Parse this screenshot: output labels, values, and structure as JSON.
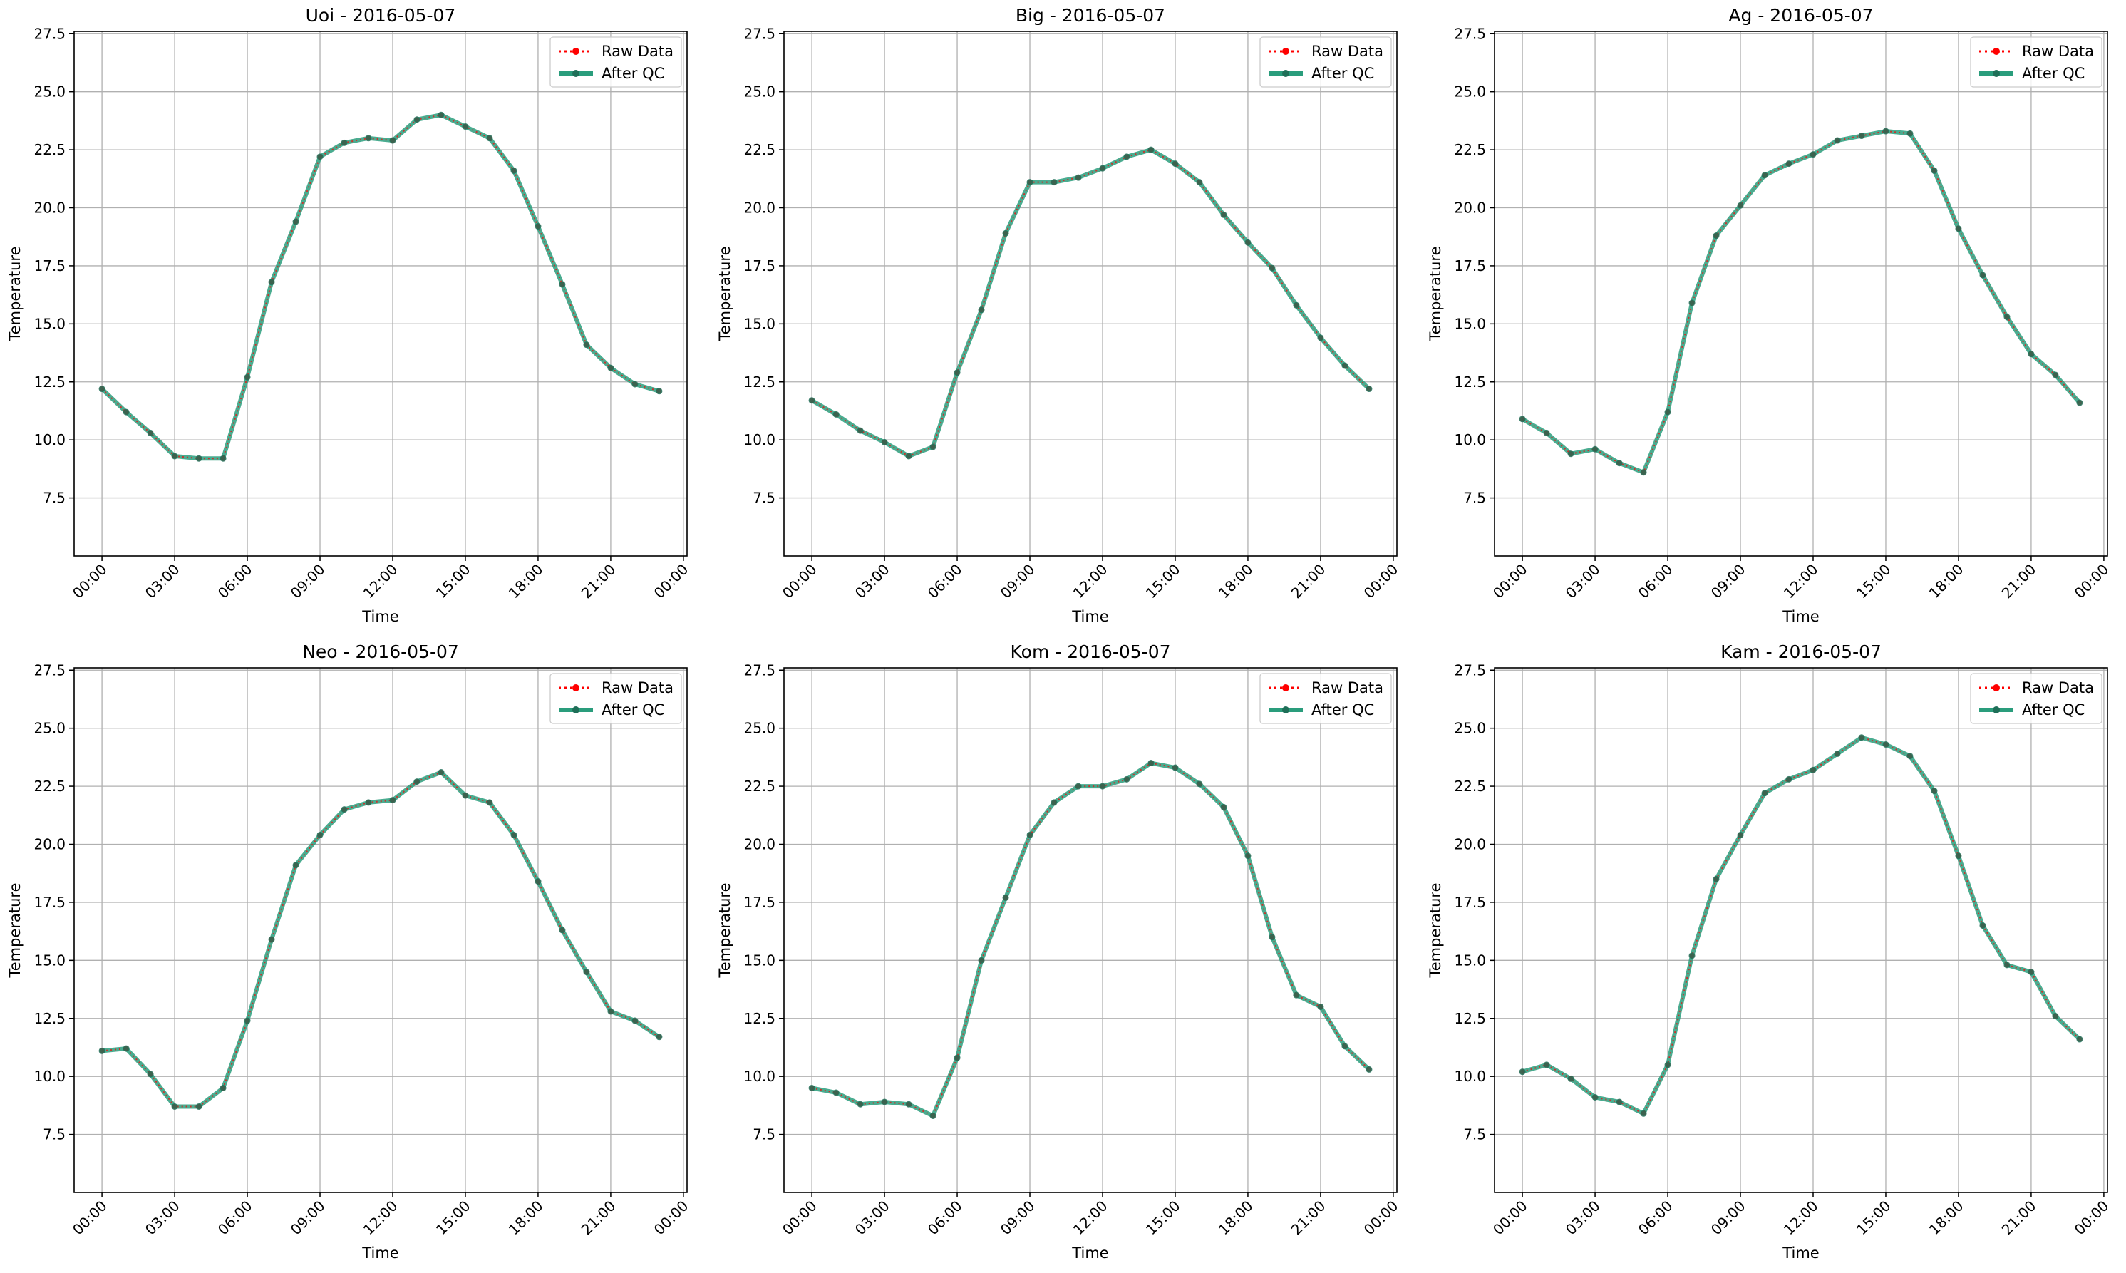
{
  "colors": {
    "raw": "#ff0000",
    "qc": "#2a9d7c",
    "grid": "#b0b0b0",
    "axes": "#000000"
  },
  "chart_data": [
    {
      "type": "line",
      "title": "Uoi - 2016-05-07",
      "xlabel": "Time",
      "ylabel": "Temperature",
      "xlim": [
        -1.15,
        24.15
      ],
      "ylim": [
        5.0,
        27.6
      ],
      "xticks": [
        0,
        3,
        6,
        9,
        12,
        15,
        18,
        21,
        24
      ],
      "xtick_labels": [
        "00:00",
        "03:00",
        "06:00",
        "09:00",
        "12:00",
        "15:00",
        "18:00",
        "21:00",
        "00:00"
      ],
      "yticks": [
        7.5,
        10.0,
        12.5,
        15.0,
        17.5,
        20.0,
        22.5,
        25.0,
        27.5
      ],
      "ytick_labels": [
        "7.5",
        "10.0",
        "12.5",
        "15.0",
        "17.5",
        "20.0",
        "22.5",
        "25.0",
        "27.5"
      ],
      "grid": true,
      "legend_loc": "upper right",
      "x": [
        0,
        1,
        2,
        3,
        4,
        5,
        6,
        7,
        8,
        9,
        10,
        11,
        12,
        13,
        14,
        15,
        16,
        17,
        18,
        19,
        20,
        21,
        22,
        23
      ],
      "series": [
        {
          "name": "Raw Data",
          "values": [
            12.2,
            11.2,
            10.3,
            9.3,
            9.2,
            9.2,
            12.7,
            16.8,
            19.4,
            22.2,
            22.8,
            23.0,
            22.9,
            23.8,
            24.0,
            23.5,
            23.0,
            21.6,
            19.2,
            16.7,
            14.1,
            13.1,
            12.4,
            12.1
          ]
        },
        {
          "name": "After QC",
          "values": [
            12.2,
            11.2,
            10.3,
            9.3,
            9.2,
            9.2,
            12.7,
            16.8,
            19.4,
            22.2,
            22.8,
            23.0,
            22.9,
            23.8,
            24.0,
            23.5,
            23.0,
            21.6,
            19.2,
            16.7,
            14.1,
            13.1,
            12.4,
            12.1
          ]
        }
      ]
    },
    {
      "type": "line",
      "title": "Big - 2016-05-07",
      "xlabel": "Time",
      "ylabel": "Temperature",
      "xlim": [
        -1.15,
        24.15
      ],
      "ylim": [
        5.0,
        27.6
      ],
      "xticks": [
        0,
        3,
        6,
        9,
        12,
        15,
        18,
        21,
        24
      ],
      "xtick_labels": [
        "00:00",
        "03:00",
        "06:00",
        "09:00",
        "12:00",
        "15:00",
        "18:00",
        "21:00",
        "00:00"
      ],
      "yticks": [
        7.5,
        10.0,
        12.5,
        15.0,
        17.5,
        20.0,
        22.5,
        25.0,
        27.5
      ],
      "ytick_labels": [
        "7.5",
        "10.0",
        "12.5",
        "15.0",
        "17.5",
        "20.0",
        "22.5",
        "25.0",
        "27.5"
      ],
      "grid": true,
      "legend_loc": "upper right",
      "x": [
        0,
        1,
        2,
        3,
        4,
        5,
        6,
        7,
        8,
        9,
        10,
        11,
        12,
        13,
        14,
        15,
        16,
        17,
        18,
        19,
        20,
        21,
        22,
        23
      ],
      "series": [
        {
          "name": "Raw Data",
          "values": [
            11.7,
            11.1,
            10.4,
            9.9,
            9.3,
            9.7,
            12.9,
            15.6,
            18.9,
            21.1,
            21.1,
            21.3,
            21.7,
            22.2,
            22.5,
            21.9,
            21.1,
            19.7,
            18.5,
            17.4,
            15.8,
            14.4,
            13.2,
            12.2
          ]
        },
        {
          "name": "After QC",
          "values": [
            11.7,
            11.1,
            10.4,
            9.9,
            9.3,
            9.7,
            12.9,
            15.6,
            18.9,
            21.1,
            21.1,
            21.3,
            21.7,
            22.2,
            22.5,
            21.9,
            21.1,
            19.7,
            18.5,
            17.4,
            15.8,
            14.4,
            13.2,
            12.2
          ]
        }
      ]
    },
    {
      "type": "line",
      "title": "Ag - 2016-05-07",
      "xlabel": "Time",
      "ylabel": "Temperature",
      "xlim": [
        -1.15,
        24.15
      ],
      "ylim": [
        5.0,
        27.6
      ],
      "xticks": [
        0,
        3,
        6,
        9,
        12,
        15,
        18,
        21,
        24
      ],
      "xtick_labels": [
        "00:00",
        "03:00",
        "06:00",
        "09:00",
        "12:00",
        "15:00",
        "18:00",
        "21:00",
        "00:00"
      ],
      "yticks": [
        7.5,
        10.0,
        12.5,
        15.0,
        17.5,
        20.0,
        22.5,
        25.0,
        27.5
      ],
      "ytick_labels": [
        "7.5",
        "10.0",
        "12.5",
        "15.0",
        "17.5",
        "20.0",
        "22.5",
        "25.0",
        "27.5"
      ],
      "grid": true,
      "legend_loc": "upper right",
      "x": [
        0,
        1,
        2,
        3,
        4,
        5,
        6,
        7,
        8,
        9,
        10,
        11,
        12,
        13,
        14,
        15,
        16,
        17,
        18,
        19,
        20,
        21,
        22,
        23
      ],
      "series": [
        {
          "name": "Raw Data",
          "values": [
            10.9,
            10.3,
            9.4,
            9.6,
            9.0,
            8.6,
            11.2,
            15.9,
            18.8,
            20.1,
            21.4,
            21.9,
            22.3,
            22.9,
            23.1,
            23.3,
            23.2,
            21.6,
            19.1,
            17.1,
            15.3,
            13.7,
            12.8,
            11.6
          ]
        },
        {
          "name": "After QC",
          "values": [
            10.9,
            10.3,
            9.4,
            9.6,
            9.0,
            8.6,
            11.2,
            15.9,
            18.8,
            20.1,
            21.4,
            21.9,
            22.3,
            22.9,
            23.1,
            23.3,
            23.2,
            21.6,
            19.1,
            17.1,
            15.3,
            13.7,
            12.8,
            11.6
          ]
        }
      ]
    },
    {
      "type": "line",
      "title": "Neo - 2016-05-07",
      "xlabel": "Time",
      "ylabel": "Temperature",
      "xlim": [
        -1.15,
        24.15
      ],
      "ylim": [
        5.0,
        27.6
      ],
      "xticks": [
        0,
        3,
        6,
        9,
        12,
        15,
        18,
        21,
        24
      ],
      "xtick_labels": [
        "00:00",
        "03:00",
        "06:00",
        "09:00",
        "12:00",
        "15:00",
        "18:00",
        "21:00",
        "00:00"
      ],
      "yticks": [
        7.5,
        10.0,
        12.5,
        15.0,
        17.5,
        20.0,
        22.5,
        25.0,
        27.5
      ],
      "ytick_labels": [
        "7.5",
        "10.0",
        "12.5",
        "15.0",
        "17.5",
        "20.0",
        "22.5",
        "25.0",
        "27.5"
      ],
      "grid": true,
      "legend_loc": "upper right",
      "x": [
        0,
        1,
        2,
        3,
        4,
        5,
        6,
        7,
        8,
        9,
        10,
        11,
        12,
        13,
        14,
        15,
        16,
        17,
        18,
        19,
        20,
        21,
        22,
        23
      ],
      "series": [
        {
          "name": "Raw Data",
          "values": [
            11.1,
            11.2,
            10.1,
            8.7,
            8.7,
            9.5,
            12.4,
            15.9,
            19.1,
            20.4,
            21.5,
            21.8,
            21.9,
            22.7,
            23.1,
            22.1,
            21.8,
            20.4,
            18.4,
            16.3,
            14.5,
            12.8,
            12.4,
            11.7
          ]
        },
        {
          "name": "After QC",
          "values": [
            11.1,
            11.2,
            10.1,
            8.7,
            8.7,
            9.5,
            12.4,
            15.9,
            19.1,
            20.4,
            21.5,
            21.8,
            21.9,
            22.7,
            23.1,
            22.1,
            21.8,
            20.4,
            18.4,
            16.3,
            14.5,
            12.8,
            12.4,
            11.7
          ]
        }
      ]
    },
    {
      "type": "line",
      "title": "Kom - 2016-05-07",
      "xlabel": "Time",
      "ylabel": "Temperature",
      "xlim": [
        -1.15,
        24.15
      ],
      "ylim": [
        5.0,
        27.6
      ],
      "xticks": [
        0,
        3,
        6,
        9,
        12,
        15,
        18,
        21,
        24
      ],
      "xtick_labels": [
        "00:00",
        "03:00",
        "06:00",
        "09:00",
        "12:00",
        "15:00",
        "18:00",
        "21:00",
        "00:00"
      ],
      "yticks": [
        7.5,
        10.0,
        12.5,
        15.0,
        17.5,
        20.0,
        22.5,
        25.0,
        27.5
      ],
      "ytick_labels": [
        "7.5",
        "10.0",
        "12.5",
        "15.0",
        "17.5",
        "20.0",
        "22.5",
        "25.0",
        "27.5"
      ],
      "grid": true,
      "legend_loc": "upper right",
      "x": [
        0,
        1,
        2,
        3,
        4,
        5,
        6,
        7,
        8,
        9,
        10,
        11,
        12,
        13,
        14,
        15,
        16,
        17,
        18,
        19,
        20,
        21,
        22,
        23
      ],
      "series": [
        {
          "name": "Raw Data",
          "values": [
            9.5,
            9.3,
            8.8,
            8.9,
            8.8,
            8.3,
            10.8,
            15.0,
            17.7,
            20.4,
            21.8,
            22.5,
            22.5,
            22.8,
            23.5,
            23.3,
            22.6,
            21.6,
            19.5,
            16.0,
            13.5,
            13.0,
            11.3,
            10.3
          ]
        },
        {
          "name": "After QC",
          "values": [
            9.5,
            9.3,
            8.8,
            8.9,
            8.8,
            8.3,
            10.8,
            15.0,
            17.7,
            20.4,
            21.8,
            22.5,
            22.5,
            22.8,
            23.5,
            23.3,
            22.6,
            21.6,
            19.5,
            16.0,
            13.5,
            13.0,
            11.3,
            10.3
          ]
        }
      ]
    },
    {
      "type": "line",
      "title": "Kam - 2016-05-07",
      "xlabel": "Time",
      "ylabel": "Temperature",
      "xlim": [
        -1.15,
        24.15
      ],
      "ylim": [
        5.0,
        27.6
      ],
      "xticks": [
        0,
        3,
        6,
        9,
        12,
        15,
        18,
        21,
        24
      ],
      "xtick_labels": [
        "00:00",
        "03:00",
        "06:00",
        "09:00",
        "12:00",
        "15:00",
        "18:00",
        "21:00",
        "00:00"
      ],
      "yticks": [
        7.5,
        10.0,
        12.5,
        15.0,
        17.5,
        20.0,
        22.5,
        25.0,
        27.5
      ],
      "ytick_labels": [
        "7.5",
        "10.0",
        "12.5",
        "15.0",
        "17.5",
        "20.0",
        "22.5",
        "25.0",
        "27.5"
      ],
      "grid": true,
      "legend_loc": "upper right",
      "x": [
        0,
        1,
        2,
        3,
        4,
        5,
        6,
        7,
        8,
        9,
        10,
        11,
        12,
        13,
        14,
        15,
        16,
        17,
        18,
        19,
        20,
        21,
        22,
        23
      ],
      "series": [
        {
          "name": "Raw Data",
          "values": [
            10.2,
            10.5,
            9.9,
            9.1,
            8.9,
            8.4,
            10.5,
            15.2,
            18.5,
            20.4,
            22.2,
            22.8,
            23.2,
            23.9,
            24.6,
            24.3,
            23.8,
            22.3,
            19.5,
            16.5,
            14.8,
            14.5,
            12.6,
            11.6
          ]
        },
        {
          "name": "After QC",
          "values": [
            10.2,
            10.5,
            9.9,
            9.1,
            8.9,
            8.4,
            10.5,
            15.2,
            18.5,
            20.4,
            22.2,
            22.8,
            23.2,
            23.9,
            24.6,
            24.3,
            23.8,
            22.3,
            19.5,
            16.5,
            14.8,
            14.5,
            12.6,
            11.6
          ]
        }
      ]
    }
  ]
}
